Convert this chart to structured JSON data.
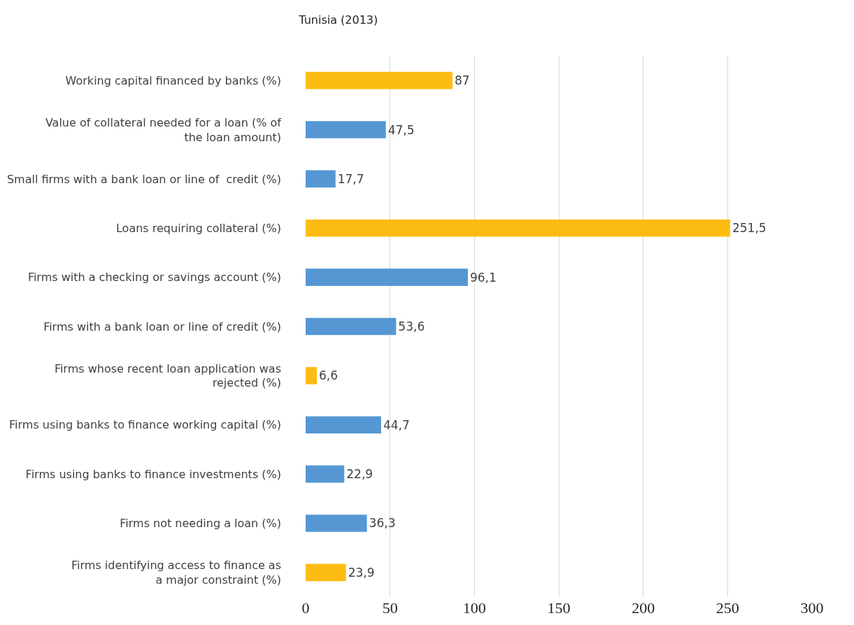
{
  "chart_data": {
    "type": "bar",
    "orientation": "horizontal",
    "title": "Tunisia (2013)",
    "categories": [
      "Working capital financed by banks (%)",
      "Value of collateral needed for a loan (% of\nthe loan amount)",
      "Small firms with a bank loan or line of  credit (%)",
      "Loans requiring collateral (%)",
      "Firms with a checking or savings account (%)",
      "Firms with a bank loan or line of credit (%)",
      "Firms whose recent loan application was\nrejected (%)",
      "Firms using banks to finance working capital (%)",
      "Firms using banks to finance investments (%)",
      "Firms not needing a loan (%)",
      "Firms identifying access to finance as\na major constraint (%)"
    ],
    "values": [
      87,
      47.5,
      17.7,
      251.5,
      96.1,
      53.6,
      6.6,
      44.7,
      22.9,
      36.3,
      23.9
    ],
    "value_labels": [
      "87",
      "47,5",
      "17,7",
      "251,5",
      "96,1",
      "53,6",
      "6,6",
      "44,7",
      "22,9",
      "36,3",
      "23,9"
    ],
    "colors": [
      "#fdbc11",
      "#5597d3",
      "#5597d3",
      "#fdbc11",
      "#5597d3",
      "#5597d3",
      "#fdbc11",
      "#5597d3",
      "#5597d3",
      "#5597d3",
      "#fdbc11"
    ],
    "xlim": [
      0,
      300
    ],
    "xticks": [
      0,
      50,
      100,
      150,
      200,
      250,
      300
    ],
    "grid": "x"
  }
}
